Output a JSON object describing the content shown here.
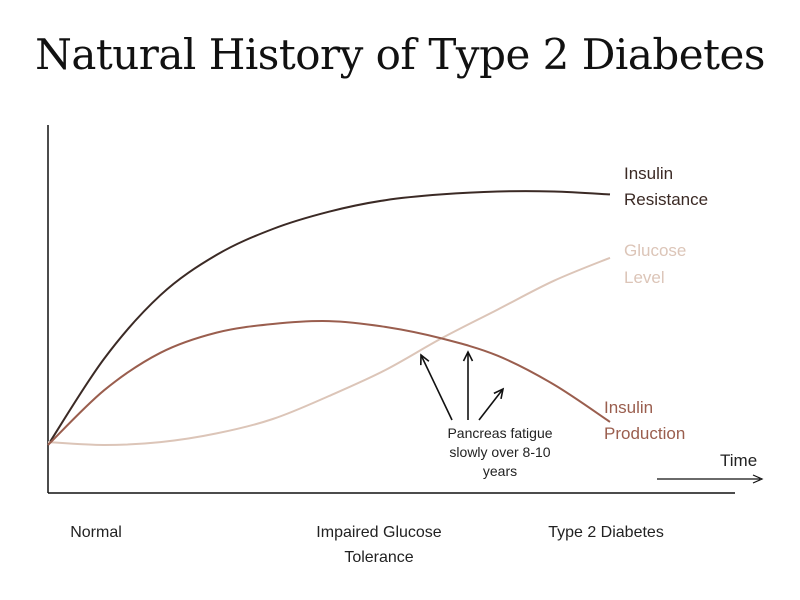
{
  "chart_data": {
    "type": "line",
    "title": "Natural History of Type 2 Diabetes",
    "xlabel": "Time",
    "ylabel": "",
    "x_phases": [
      "Normal",
      "Impaired Glucose Tolerance",
      "Type 2 Diabetes"
    ],
    "axes_ticks": false,
    "grid": false,
    "legend": "direct labels at line ends",
    "x": [
      0,
      0.1,
      0.2,
      0.3,
      0.4,
      0.5,
      0.6,
      0.7,
      0.8,
      0.9,
      1.0
    ],
    "ylim": [
      0,
      1
    ],
    "series": [
      {
        "name_lines": [
          "Insulin",
          "Resistance"
        ],
        "color": "#3b2a25",
        "values": [
          0.08,
          0.38,
          0.6,
          0.74,
          0.83,
          0.89,
          0.93,
          0.95,
          0.96,
          0.96,
          0.95
        ]
      },
      {
        "name_lines": [
          "Glucose",
          "Level"
        ],
        "color": "#dcc5b8",
        "values": [
          0.09,
          0.08,
          0.09,
          0.12,
          0.17,
          0.25,
          0.34,
          0.45,
          0.55,
          0.65,
          0.73
        ]
      },
      {
        "name_lines": [
          "Insulin",
          "Production"
        ],
        "color": "#9a5e4e",
        "values": [
          0.08,
          0.27,
          0.4,
          0.47,
          0.5,
          0.51,
          0.49,
          0.45,
          0.39,
          0.29,
          0.16
        ]
      }
    ],
    "annotation": {
      "lines": [
        "Pancreas fatigue",
        "slowly over 8-10",
        "years"
      ]
    }
  }
}
